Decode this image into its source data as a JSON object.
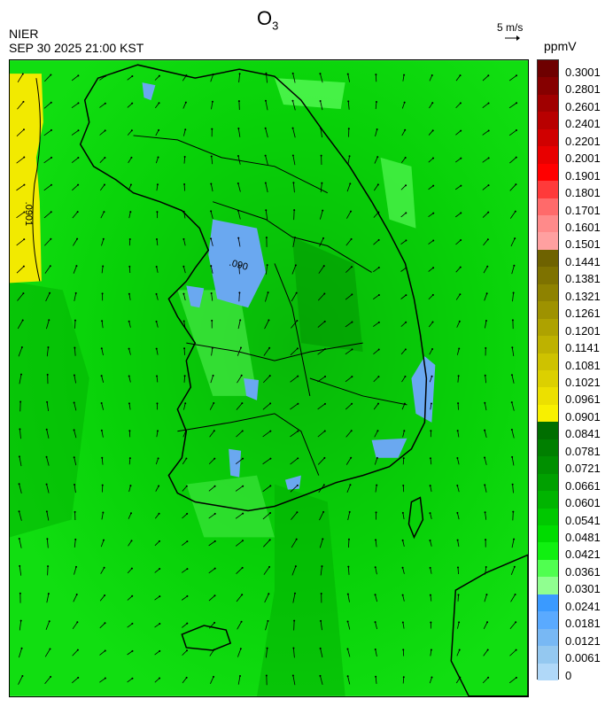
{
  "header": {
    "agency": "NIER",
    "timestamp": "SEP 30 2025 21:00 KST",
    "title_main": "O",
    "title_sub": "3",
    "wind_scale_label": "5 m/s",
    "unit": "ppmV"
  },
  "contour_labels": [
    ".0901",
    ".090"
  ],
  "colorbar": {
    "tick_labels": [
      "0.3001",
      "0.2801",
      "0.2601",
      "0.2401",
      "0.2201",
      "0.2001",
      "0.1901",
      "0.1801",
      "0.1701",
      "0.1601",
      "0.1501",
      "0.1441",
      "0.1381",
      "0.1321",
      "0.1261",
      "0.1201",
      "0.1141",
      "0.1081",
      "0.1021",
      "0.0961",
      "0.0901",
      "0.0841",
      "0.0781",
      "0.0721",
      "0.0661",
      "0.0601",
      "0.0541",
      "0.0481",
      "0.0421",
      "0.0361",
      "0.0301",
      "0.0241",
      "0.0181",
      "0.0121",
      "0.0061",
      "0"
    ],
    "colors": [
      "#6e0000",
      "#860000",
      "#a00000",
      "#b80000",
      "#d00000",
      "#e80000",
      "#ff0000",
      "#ff3a3a",
      "#ff6a6a",
      "#ff8a8a",
      "#ffa0a0",
      "#6e6200",
      "#7e7200",
      "#8e8200",
      "#9e9200",
      "#aea200",
      "#beb200",
      "#cec200",
      "#dcd000",
      "#ece000",
      "#f8f000",
      "#006e00",
      "#007f00",
      "#008f00",
      "#00a000",
      "#00b400",
      "#00c800",
      "#00dc00",
      "#10f010",
      "#50ff50",
      "#90ff90",
      "#3a9aff",
      "#5aaaff",
      "#78b8f4",
      "#94c8f0",
      "#b0d8f8"
    ]
  }
}
